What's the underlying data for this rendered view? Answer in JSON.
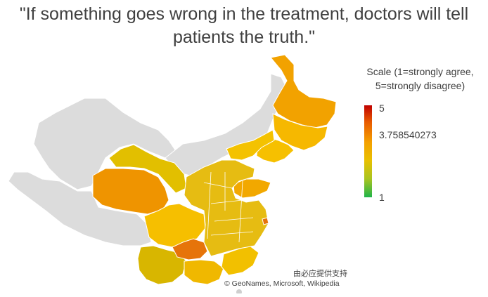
{
  "title": "\"If something goes wrong in the treatment, doctors will tell patients the truth.\"",
  "legend": {
    "title": "Scale (1=strongly agree, 5=strongly disagree)",
    "max_label": "5",
    "mid_label": "3.758540273",
    "min_label": "1",
    "colors": [
      "#c00000",
      "#e85a00",
      "#f4a000",
      "#e8c000",
      "#a8c420",
      "#1fb44a"
    ]
  },
  "credits": {
    "provider": "由必应提供支持",
    "sources": "© GeoNames, Microsoft, Wikipedia"
  },
  "map": {
    "no_data_color": "#dcdcdc",
    "border_color": "#ffffff",
    "region_colors": {
      "heilongjiang": "#f2a200",
      "jilin": "#f6b800",
      "liaoning": "#f6c000",
      "inner_mongolia": "#f4c200",
      "qinghai": "#ef9400",
      "gansu": "#e2bf00",
      "sichuan": "#f6bf00",
      "guizhou": "#e6740a",
      "yunnan": "#d8b600",
      "shandong": "#f2a800",
      "guangdong": "#f2c000",
      "guangxi": "#f0b800",
      "other_east": "#e6bc12"
    }
  }
}
